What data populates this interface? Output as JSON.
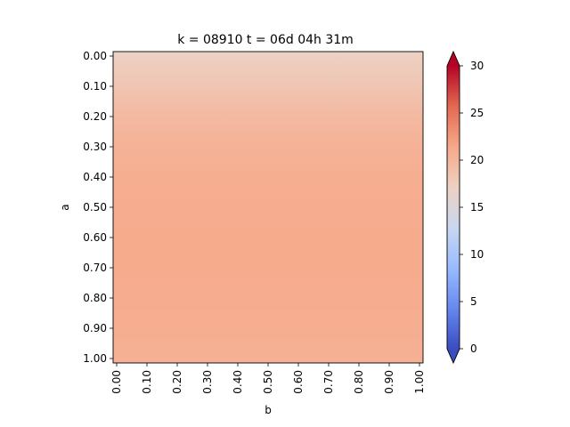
{
  "chart_data": {
    "type": "heatmap",
    "title": "k = 08910 t = 06d 04h 31m",
    "xlabel": "b",
    "ylabel": "a",
    "x_ticks": [
      "0.00",
      "0.10",
      "0.20",
      "0.30",
      "0.40",
      "0.50",
      "0.60",
      "0.70",
      "0.80",
      "0.90",
      "1.00"
    ],
    "y_ticks": [
      "0.00",
      "0.10",
      "0.20",
      "0.30",
      "0.40",
      "0.50",
      "0.60",
      "0.70",
      "0.80",
      "0.90",
      "1.00"
    ],
    "xlim": [
      0,
      1
    ],
    "ylim": [
      1,
      0
    ],
    "y_axis_inverted": true,
    "values_by_a": {
      "a": [
        0.0,
        0.1,
        0.2,
        0.3,
        0.4,
        0.5,
        0.6,
        0.7,
        0.8,
        0.9,
        1.0
      ],
      "value": [
        17.0,
        18.2,
        19.5,
        20.4,
        20.8,
        21.0,
        21.1,
        21.1,
        21.0,
        20.8,
        20.5
      ],
      "constant_along_b": true
    },
    "colorbar": {
      "colormap": "coolwarm",
      "range": [
        0,
        30
      ],
      "ticks": [
        "0",
        "5",
        "10",
        "15",
        "20",
        "25",
        "30"
      ],
      "extend": "both",
      "colors": [
        "#3b4cc0",
        "#6788ee",
        "#9abbff",
        "#c9d7f0",
        "#edd1c2",
        "#f7a889",
        "#e26952",
        "#b40426"
      ]
    },
    "grid": false
  }
}
